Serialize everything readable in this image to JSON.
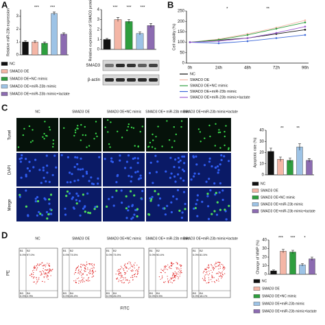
{
  "panels": {
    "a": "A",
    "b": "B",
    "c": "C",
    "d": "D"
  },
  "blot": {
    "rows": [
      "SMAD3",
      "β-actin"
    ]
  },
  "microscopy": {
    "columns": [
      "NC",
      "SMAD3 OE",
      "SMAD3 OE+NC mimic",
      "SMAD3 OE+ miR-23b mimic",
      "SMAD3 OE+miR-23b mimic+lactate"
    ],
    "rows": [
      "Tunel",
      "DAPI",
      "Merge"
    ]
  },
  "flow": {
    "x_label": "FITC",
    "y_label": "PE",
    "columns": [
      "NC",
      "SMAD3 OE",
      "SMAD3 OE+NC mimic",
      "SMAD3 OE+ miR-23b mimic",
      "SMAD3 OE+miR-23b mimic+lactate"
    ],
    "quadrants": [
      [
        "B1",
        "0.0%",
        "B2",
        "97.0%",
        "B3",
        "0.0%",
        "B4",
        "2.9%"
      ],
      [
        "B1",
        "0.0%",
        "B2",
        "73.5%",
        "B3",
        "0.0%",
        "B4",
        "26.4%"
      ],
      [
        "B1",
        "0.0%",
        "B2",
        "73.9%",
        "B3",
        "0.0%",
        "B4",
        "26.0%"
      ],
      [
        "B1",
        "0.0%",
        "B2",
        "90.4%",
        "B3",
        "0.0%",
        "B4",
        "9.5%"
      ],
      [
        "B1",
        "0.0%",
        "B2",
        "81.5%",
        "B3",
        "0.0%",
        "B4",
        "18.1%"
      ]
    ]
  },
  "chart_data": [
    {
      "type": "bar",
      "y_label": "Relative miR-23b expression",
      "categories": [
        "NC",
        "SMAD3 OE",
        "SMAD3 OE+NC mimic",
        "SMAD3 OE+miR-23b mimic",
        "SMAD3 OE+miR-23b mimic+lactate"
      ],
      "values": [
        1,
        1,
        0.9,
        3.2,
        1.6
      ],
      "errors": [
        0.1,
        0.1,
        0.1,
        0.12,
        0.1
      ],
      "colors": [
        "#111111",
        "#f4b6a6",
        "#2e9e3e",
        "#9dc3e6",
        "#8c6bb1"
      ],
      "ylim": [
        0,
        3.5
      ],
      "yticks": [
        0,
        1,
        2,
        3
      ],
      "annotations": [
        "***",
        "***"
      ]
    },
    {
      "type": "bar",
      "y_label": "Relative expression of SMAD3 protein",
      "values": [
        1,
        3,
        2.8,
        1.6,
        2.4
      ],
      "errors": [
        0.1,
        0.2,
        0.2,
        0.15,
        0.2
      ],
      "colors": [
        "#111111",
        "#f4b6a6",
        "#2e9e3e",
        "#9dc3e6",
        "#8c6bb1"
      ],
      "ylim": [
        0,
        4
      ],
      "yticks": [
        0,
        1,
        2,
        3,
        4
      ],
      "annotations": [
        "***",
        "***",
        "***"
      ]
    },
    {
      "type": "line",
      "y_label": "Cell viability (%)",
      "categories": [
        "0h",
        "24h",
        "48h",
        "72h",
        "96h"
      ],
      "ylim": [
        0,
        250
      ],
      "yticks": [
        0,
        50,
        100,
        150,
        200,
        250
      ],
      "annotations": [
        "*",
        "**"
      ],
      "series": [
        {
          "name": "NC",
          "color": "#111111",
          "values": [
            100,
            110,
            120,
            140,
            160
          ]
        },
        {
          "name": "SMAD3 OE",
          "color": "#f4b6a6",
          "values": [
            100,
            115,
            140,
            170,
            205
          ]
        },
        {
          "name": "SMAD3 OE+NC mimic",
          "color": "#2e9e3e",
          "values": [
            100,
            112,
            135,
            165,
            195
          ]
        },
        {
          "name": "SMAD3 OE+miR-23b mimic",
          "color": "#3a66d8",
          "values": [
            100,
            95,
            105,
            120,
            135
          ]
        },
        {
          "name": "SMAD3 OE+miR-23b mimic+lactate",
          "color": "#9b59d0",
          "values": [
            100,
            105,
            120,
            145,
            175
          ]
        }
      ]
    },
    {
      "type": "bar",
      "y_label": "Apoptotic rate (%)",
      "categories": [
        "NC",
        "SMAD3 OE",
        "SMAD3 OE+NC mimic",
        "SMAD3 OE+miR-23b mimic",
        "SMAD3 OE+miR-23b mimic+lactate"
      ],
      "values": [
        21,
        14,
        13,
        25,
        13
      ],
      "errors": [
        3,
        2,
        2,
        3,
        1.5
      ],
      "colors": [
        "#111111",
        "#f4b6a6",
        "#2e9e3e",
        "#9dc3e6",
        "#8c6bb1"
      ],
      "ylim": [
        0,
        40
      ],
      "yticks": [
        0,
        10,
        20,
        30,
        40
      ],
      "annotations": [
        "**",
        "**"
      ]
    },
    {
      "type": "bar",
      "y_label": "Change of MMP (%)",
      "categories": [
        "NC",
        "SMAD3 OE",
        "SMAD3 OE+NC mimic",
        "SMAD3 OE+miR-23b mimic",
        "SMAD3 OE+miR-23b mimic+lactate"
      ],
      "values": [
        4,
        27,
        26,
        11,
        18
      ],
      "errors": [
        1,
        2,
        2,
        1.5,
        2
      ],
      "colors": [
        "#111111",
        "#f4b6a6",
        "#2e9e3e",
        "#9dc3e6",
        "#8c6bb1"
      ],
      "ylim": [
        0,
        40
      ],
      "yticks": [
        0,
        10,
        20,
        30,
        40
      ],
      "annotations": [
        "***",
        "***",
        "*"
      ]
    }
  ]
}
